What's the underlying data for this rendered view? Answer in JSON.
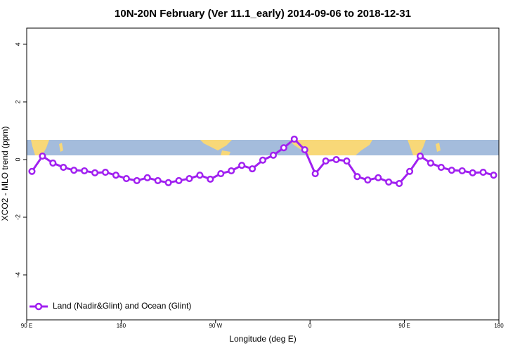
{
  "chart_data": {
    "type": "line",
    "title": "10N-20N February (Ver 11.1_early)   2014-09-06 to 2018-12-31",
    "x_label": "Longitude (deg E)",
    "y_label": "XCO2 - MLO trend (ppm)",
    "x": [
      95,
      105,
      115,
      125,
      135,
      145,
      155,
      165,
      175,
      185,
      195,
      205,
      215,
      225,
      235,
      245,
      255,
      265,
      275,
      285,
      295,
      305,
      315,
      325,
      335,
      345,
      355,
      365,
      375,
      385,
      395,
      405,
      415,
      425,
      435,
      445,
      455,
      465,
      475,
      485,
      495,
      505,
      515,
      525,
      535
    ],
    "series": [
      {
        "name": "Land (Nadir&Glint) and Ocean (Glint)",
        "color": "#a020f0",
        "values": [
          -0.41,
          0.12,
          -0.12,
          -0.27,
          -0.37,
          -0.39,
          -0.46,
          -0.44,
          -0.54,
          -0.66,
          -0.73,
          -0.63,
          -0.73,
          -0.8,
          -0.73,
          -0.66,
          -0.54,
          -0.68,
          -0.49,
          -0.39,
          -0.2,
          -0.32,
          -0.02,
          0.15,
          0.41,
          0.71,
          0.34,
          -0.49,
          -0.05,
          0.0,
          -0.05,
          -0.59,
          -0.71,
          -0.63,
          -0.78,
          -0.83,
          -0.41,
          0.12,
          -0.12,
          -0.27,
          -0.37,
          -0.39,
          -0.46,
          -0.44,
          -0.54
        ]
      }
    ],
    "xlim": [
      90,
      540
    ],
    "xticks": [
      {
        "value": 90,
        "label": "90 E"
      },
      {
        "value": 180,
        "label": "180"
      },
      {
        "value": 270,
        "label": "90 W"
      },
      {
        "value": 360,
        "label": "0"
      },
      {
        "value": 450,
        "label": "90 E"
      },
      {
        "value": 540,
        "label": "180"
      }
    ],
    "ylim": [
      -5.56,
      4.56
    ],
    "yticks": [
      -4,
      -2,
      0,
      2,
      4
    ],
    "legend": "bottom-left"
  }
}
